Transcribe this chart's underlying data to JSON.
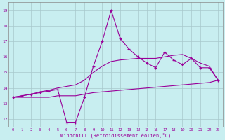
{
  "xlabel": "Windchill (Refroidissement éolien,°C)",
  "bg_color": "#c8eef0",
  "grid_color": "#a8c8cc",
  "line_color": "#990099",
  "xlim": [
    -0.5,
    23.5
  ],
  "ylim": [
    11.5,
    19.5
  ],
  "yticks": [
    12,
    13,
    14,
    15,
    16,
    17,
    18,
    19
  ],
  "xticks": [
    0,
    1,
    2,
    3,
    4,
    5,
    6,
    7,
    8,
    9,
    10,
    11,
    12,
    13,
    14,
    15,
    16,
    17,
    18,
    19,
    20,
    21,
    22,
    23
  ],
  "hours": [
    0,
    1,
    2,
    3,
    4,
    5,
    6,
    7,
    8,
    9,
    10,
    11,
    12,
    13,
    14,
    15,
    16,
    17,
    18,
    19,
    20,
    21,
    22,
    23
  ],
  "temp_line": [
    13.4,
    13.5,
    13.6,
    13.7,
    13.8,
    13.9,
    11.8,
    11.8,
    13.4,
    15.4,
    17.0,
    19.0,
    17.2,
    16.5,
    16.0,
    15.6,
    15.3,
    16.3,
    15.8,
    15.5,
    15.9,
    15.3,
    15.3,
    14.5
  ],
  "lower_line": [
    13.4,
    13.4,
    13.4,
    13.4,
    13.4,
    13.5,
    13.5,
    13.5,
    13.6,
    13.7,
    13.75,
    13.8,
    13.85,
    13.9,
    13.95,
    14.0,
    14.05,
    14.1,
    14.15,
    14.2,
    14.25,
    14.3,
    14.35,
    14.5
  ],
  "upper_line": [
    13.4,
    13.5,
    13.6,
    13.75,
    13.85,
    14.0,
    14.1,
    14.2,
    14.5,
    15.0,
    15.4,
    15.7,
    15.8,
    15.85,
    15.9,
    15.9,
    15.9,
    16.0,
    16.1,
    16.15,
    15.9,
    15.6,
    15.4,
    14.5
  ]
}
